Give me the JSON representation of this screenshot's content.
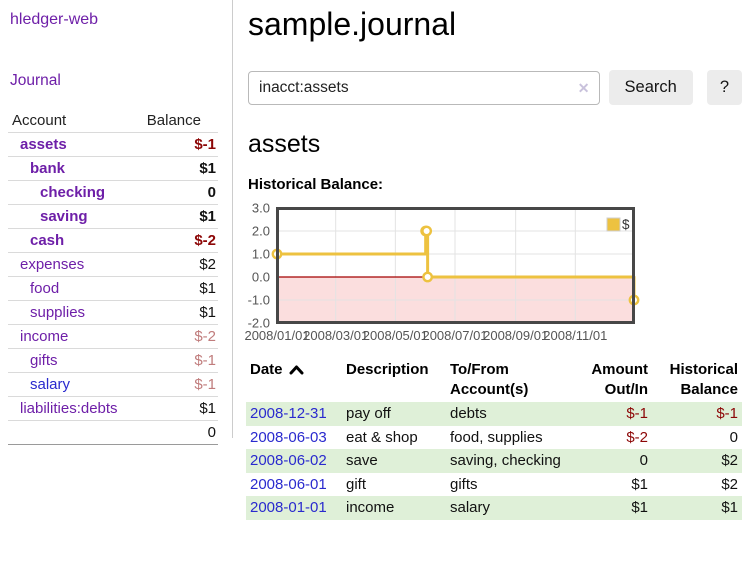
{
  "colors": {
    "link_purple": "#6e1fa8",
    "link_blue": "#2a2ace",
    "negative_strong": "#8c0606",
    "negative_dim": "#c07c7c",
    "row_highlight_green": "#dff0d8",
    "series_gold": "#edc240",
    "negative_region_pink": "#fbdede",
    "zero_line_red": "#a40000"
  },
  "sidebar": {
    "app_title": "hledger-web",
    "journal_label": "Journal",
    "table": {
      "account_header": "Account",
      "balance_header": "Balance",
      "rows": [
        {
          "name": "assets",
          "level": 1,
          "in_query": true,
          "link": "purple",
          "balance": "$-1",
          "negative": true,
          "dim": false
        },
        {
          "name": "bank",
          "level": 2,
          "in_query": true,
          "link": "purple",
          "balance": "$1",
          "negative": false,
          "dim": false
        },
        {
          "name": "checking",
          "level": 3,
          "in_query": true,
          "link": "purple",
          "balance": "0",
          "negative": false,
          "dim": false
        },
        {
          "name": "saving",
          "level": 3,
          "in_query": true,
          "link": "purple",
          "balance": "$1",
          "negative": false,
          "dim": false
        },
        {
          "name": "cash",
          "level": 2,
          "in_query": true,
          "link": "purple",
          "balance": "$-2",
          "negative": true,
          "dim": false
        },
        {
          "name": "expenses",
          "level": 1,
          "in_query": false,
          "link": "purple",
          "balance": "$2",
          "negative": false,
          "dim": false
        },
        {
          "name": "food",
          "level": 2,
          "in_query": false,
          "link": "purple",
          "balance": "$1",
          "negative": false,
          "dim": false
        },
        {
          "name": "supplies",
          "level": 2,
          "in_query": false,
          "link": "purple",
          "balance": "$1",
          "negative": false,
          "dim": false
        },
        {
          "name": "income",
          "level": 1,
          "in_query": false,
          "link": "purple",
          "balance": "$-2",
          "negative": true,
          "dim": true
        },
        {
          "name": "gifts",
          "level": 2,
          "in_query": false,
          "link": "purple",
          "balance": "$-1",
          "negative": true,
          "dim": true
        },
        {
          "name": "salary",
          "level": 2,
          "in_query": false,
          "link": "blue",
          "balance": "$-1",
          "negative": true,
          "dim": true
        },
        {
          "name": "liabilities:debts",
          "level": 1,
          "in_query": false,
          "link": "purple",
          "balance": "$1",
          "negative": false,
          "dim": false
        }
      ],
      "total": "0"
    }
  },
  "header": {
    "title": "sample.journal"
  },
  "search": {
    "value": "inacct:assets",
    "clear_icon": "✕",
    "button_label": "Search",
    "help_label": "?"
  },
  "main": {
    "account_heading": "assets",
    "chart_label": "Historical Balance:"
  },
  "chart_data": {
    "type": "line",
    "line_style": "step",
    "title": "Historical Balance:",
    "x_range": [
      "2008-01-01",
      "2008-12-31"
    ],
    "ylim": [
      -2,
      3
    ],
    "y_ticks": [
      {
        "v": 3,
        "label": "3.0"
      },
      {
        "v": 2,
        "label": "2.0"
      },
      {
        "v": 1,
        "label": "1.0"
      },
      {
        "v": 0,
        "label": "0.0"
      },
      {
        "v": -1,
        "label": "-1.0"
      },
      {
        "v": -2,
        "label": "-2.0"
      }
    ],
    "x_ticks": [
      {
        "d": "2008-01-01",
        "label": "2008/01/01"
      },
      {
        "d": "2008-03-01",
        "label": "2008/03/01"
      },
      {
        "d": "2008-05-01",
        "label": "2008/05/01"
      },
      {
        "d": "2008-07-01",
        "label": "2008/07/01"
      },
      {
        "d": "2008-09-01",
        "label": "2008/09/01"
      },
      {
        "d": "2008-11-01",
        "label": "2008/11/01"
      }
    ],
    "series": [
      {
        "name": "$",
        "color": "#edc240",
        "points": [
          [
            "2008-01-01",
            1
          ],
          [
            "2008-06-01",
            2
          ],
          [
            "2008-06-02",
            2
          ],
          [
            "2008-06-03",
            0
          ],
          [
            "2008-12-31",
            -1
          ]
        ]
      }
    ],
    "legend_position": "top-right",
    "grid": true
  },
  "register": {
    "headers": {
      "date": "Date",
      "description": "Description",
      "tofrom": "To/From Account(s)",
      "amount": "Amount Out/In",
      "balance": "Historical Balance"
    },
    "rows": [
      {
        "date": "2008-12-31",
        "description": "pay off",
        "accounts": "debts",
        "amount": "$-1",
        "balance": "$-1"
      },
      {
        "date": "2008-06-03",
        "description": "eat & shop",
        "accounts": "food, supplies",
        "amount": "$-2",
        "balance": "0"
      },
      {
        "date": "2008-06-02",
        "description": "save",
        "accounts": "saving, checking",
        "amount": "0",
        "balance": "$2"
      },
      {
        "date": "2008-06-01",
        "description": "gift",
        "accounts": "gifts",
        "amount": "$1",
        "balance": "$2"
      },
      {
        "date": "2008-01-01",
        "description": "income",
        "accounts": "salary",
        "amount": "$1",
        "balance": "$1"
      }
    ]
  }
}
